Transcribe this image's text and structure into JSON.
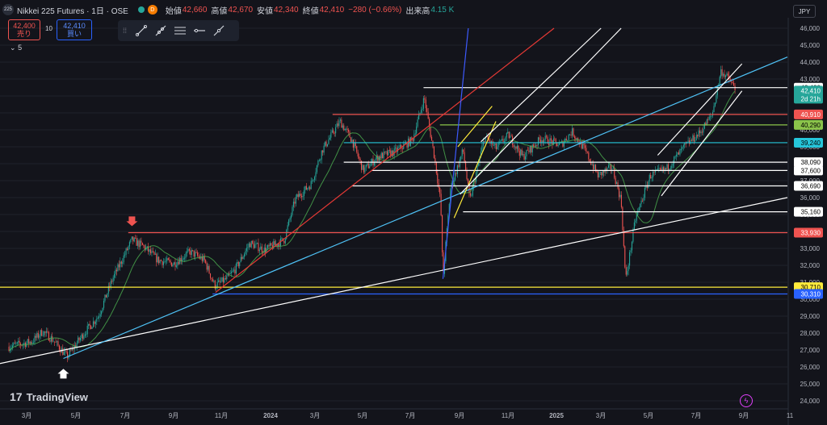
{
  "header": {
    "badge": "225",
    "title": "Nikkei 225 Futures · 1日 · OSE",
    "market_badge": "D",
    "open_label": "始値",
    "open": "42,660",
    "high_label": "高値",
    "high": "42,670",
    "low_label": "安値",
    "low": "42,340",
    "close_label": "終値",
    "close": "42,410",
    "change": "−280 (−0.66%)",
    "volume_label": "出来高",
    "volume": "4.15 K"
  },
  "trade": {
    "sell_price": "42,400",
    "sell_label": "売り",
    "spread": "10",
    "buy_price": "42,410",
    "buy_label": "買い",
    "indicator_count": "5"
  },
  "currency": "JPY",
  "logo_text": "TradingView",
  "toolbar_icons": [
    "drag-handle-icon",
    "trendline-icon",
    "ray-icon",
    "parallel-channel-icon",
    "horizontal-line-icon",
    "extended-line-icon"
  ],
  "colors": {
    "background": "#13141b",
    "up": "#26a69a",
    "down": "#ef5350",
    "ma": "#4caf50"
  },
  "chart_data": {
    "type": "candlestick",
    "y_axis": {
      "min": 24000,
      "max": 46000,
      "ticks": [
        "46,000",
        "45,000",
        "44,000",
        "43,000",
        "42,000",
        "41,000",
        "40,000",
        "39,000",
        "38,000",
        "37,000",
        "36,000",
        "35,000",
        "34,000",
        "33,000",
        "32,000",
        "31,000",
        "30,000",
        "29,000",
        "28,000",
        "27,000",
        "26,000",
        "25,000",
        "24,000"
      ]
    },
    "x_axis": {
      "labels": [
        "3月",
        "5月",
        "7月",
        "9月",
        "11月",
        "2024",
        "3月",
        "5月",
        "7月",
        "9月",
        "11月",
        "2025",
        "3月",
        "5月",
        "7月",
        "9月",
        "11"
      ]
    },
    "price_path": [
      {
        "t": "2023-01-01",
        "v": 27200
      },
      {
        "t": "2023-02-01",
        "v": 27500
      },
      {
        "t": "2023-02-15",
        "v": 28100
      },
      {
        "t": "2023-03-01",
        "v": 27600
      },
      {
        "t": "2023-03-20",
        "v": 26600
      },
      {
        "t": "2023-04-10",
        "v": 27900
      },
      {
        "t": "2023-05-01",
        "v": 29000
      },
      {
        "t": "2023-05-20",
        "v": 31200
      },
      {
        "t": "2023-06-15",
        "v": 33500
      },
      {
        "t": "2023-07-01",
        "v": 33100
      },
      {
        "t": "2023-07-20",
        "v": 32300
      },
      {
        "t": "2023-08-10",
        "v": 32100
      },
      {
        "t": "2023-09-01",
        "v": 32800
      },
      {
        "t": "2023-09-20",
        "v": 32300
      },
      {
        "t": "2023-10-04",
        "v": 30800
      },
      {
        "t": "2023-10-20",
        "v": 31200
      },
      {
        "t": "2023-11-01",
        "v": 31800
      },
      {
        "t": "2023-11-20",
        "v": 33300
      },
      {
        "t": "2023-12-10",
        "v": 32900
      },
      {
        "t": "2024-01-05",
        "v": 33500
      },
      {
        "t": "2024-01-20",
        "v": 35900
      },
      {
        "t": "2024-02-10",
        "v": 36800
      },
      {
        "t": "2024-02-25",
        "v": 38800
      },
      {
        "t": "2024-03-20",
        "v": 40500
      },
      {
        "t": "2024-04-05",
        "v": 39400
      },
      {
        "t": "2024-04-20",
        "v": 37600
      },
      {
        "t": "2024-05-10",
        "v": 38400
      },
      {
        "t": "2024-06-01",
        "v": 38700
      },
      {
        "t": "2024-06-25",
        "v": 39400
      },
      {
        "t": "2024-07-11",
        "v": 41900
      },
      {
        "t": "2024-07-25",
        "v": 38300
      },
      {
        "t": "2024-08-02",
        "v": 35700
      },
      {
        "t": "2024-08-05",
        "v": 31200
      },
      {
        "t": "2024-08-15",
        "v": 36500
      },
      {
        "t": "2024-09-01",
        "v": 38800
      },
      {
        "t": "2024-09-10",
        "v": 35800
      },
      {
        "t": "2024-09-30",
        "v": 39600
      },
      {
        "t": "2024-10-15",
        "v": 38900
      },
      {
        "t": "2024-11-01",
        "v": 39700
      },
      {
        "t": "2024-11-20",
        "v": 38400
      },
      {
        "t": "2024-12-15",
        "v": 39500
      },
      {
        "t": "2025-01-10",
        "v": 39100
      },
      {
        "t": "2025-01-25",
        "v": 39900
      },
      {
        "t": "2025-02-10",
        "v": 38900
      },
      {
        "t": "2025-03-01",
        "v": 37300
      },
      {
        "t": "2025-03-20",
        "v": 37800
      },
      {
        "t": "2025-04-01",
        "v": 35800
      },
      {
        "t": "2025-04-07",
        "v": 31100
      },
      {
        "t": "2025-04-20",
        "v": 34700
      },
      {
        "t": "2025-05-10",
        "v": 37300
      },
      {
        "t": "2025-06-01",
        "v": 37700
      },
      {
        "t": "2025-06-25",
        "v": 39000
      },
      {
        "t": "2025-07-15",
        "v": 39800
      },
      {
        "t": "2025-08-01",
        "v": 40900
      },
      {
        "t": "2025-08-13",
        "v": 43500
      },
      {
        "t": "2025-08-25",
        "v": 42900
      },
      {
        "t": "2025-09-01",
        "v": 42410
      }
    ],
    "horizontal_levels": [
      {
        "label": "42,490",
        "value": 42490,
        "color": "#ffffff",
        "text_color": "#000000"
      },
      {
        "label": "40,910",
        "value": 40910,
        "color": "#ef5350",
        "text_color": "#ffffff"
      },
      {
        "label": "40,290",
        "value": 40290,
        "color": "#8bc34a",
        "text_color": "#000000"
      },
      {
        "label": "39,240",
        "value": 39240,
        "color": "#26c6da",
        "text_color": "#000000"
      },
      {
        "label": "38,090",
        "value": 38090,
        "color": "#ffffff",
        "text_color": "#000000"
      },
      {
        "label": "37,600",
        "value": 37600,
        "color": "#ffffff",
        "text_color": "#000000"
      },
      {
        "label": "36,690",
        "value": 36690,
        "color": "#ffffff",
        "text_color": "#000000"
      },
      {
        "label": "35,160",
        "value": 35160,
        "color": "#ffffff",
        "text_color": "#000000"
      },
      {
        "label": "33,930",
        "value": 33930,
        "color": "#ef5350",
        "text_color": "#ffffff"
      },
      {
        "label": "30,710",
        "value": 30710,
        "color": "#ffeb3b",
        "text_color": "#000000"
      },
      {
        "label": "30,310",
        "value": 30310,
        "color": "#2962ff",
        "text_color": "#ffffff"
      }
    ],
    "current_price": {
      "label": "42,410",
      "countdown": "2d 21h",
      "value": 42410,
      "color": "#26a69a"
    },
    "trendlines": [
      {
        "name": "long-support",
        "color": "#ffffff",
        "from": {
          "t": "2022-12-20",
          "v": 26200
        },
        "to": {
          "t": "2025-11-10",
          "v": 36000
        }
      },
      {
        "name": "cyan-trend",
        "color": "#4fc3f7",
        "from": {
          "t": "2023-03-15",
          "v": 26500
        },
        "to": {
          "t": "2025-11-10",
          "v": 44300
        }
      },
      {
        "name": "red-trend",
        "color": "#e53935",
        "from": {
          "t": "2023-10-05",
          "v": 30400
        },
        "to": {
          "t": "2025-01-01",
          "v": 46000
        }
      },
      {
        "name": "blue-trend",
        "color": "#3d5afe",
        "from": {
          "t": "2024-08-05",
          "v": 31200
        },
        "to": {
          "t": "2024-09-08",
          "v": 46000
        }
      }
    ],
    "markers": [
      {
        "type": "down-arrow",
        "color": "#ef5350",
        "t": "2023-06-15",
        "v": 34600
      },
      {
        "type": "up-arrow",
        "color": "#ffffff",
        "t": "2023-03-15",
        "v": 25600
      }
    ]
  }
}
